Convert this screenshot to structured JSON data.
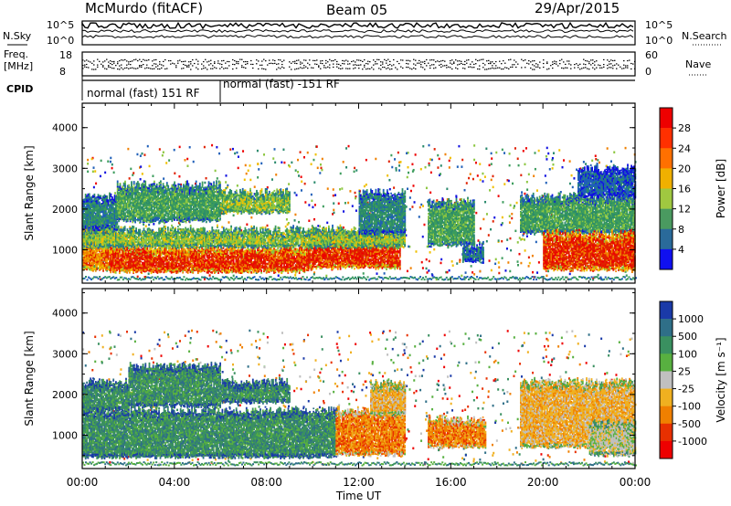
{
  "header": {
    "station": "McMurdo (fitACF)",
    "beam": "Beam 05",
    "date": "29/Apr/2015"
  },
  "top_panels": {
    "nsky_label": "N.Sky",
    "nsky_ticks": [
      "10^5",
      "10^0"
    ],
    "nsearch_ticks": [
      "10^5",
      "10^0"
    ],
    "nsearch_label": "N.Search",
    "freq_label_1": "Freq.",
    "freq_label_2": "[MHz]",
    "freq_ticks": [
      "18",
      "8"
    ],
    "nave_ticks": [
      "60",
      "0"
    ],
    "nave_label": "Nave",
    "cpid_label": "CPID",
    "cpid_segments": [
      {
        "text": "normal (fast) 151 RF",
        "start_hour": 0,
        "end_hour": 6.2
      },
      {
        "text": "normal (fast) -151 RF",
        "start_hour": 6.2,
        "end_hour": 24
      }
    ]
  },
  "chart_data": [
    {
      "type": "heatmap",
      "name": "power-panel",
      "ylabel": "Slant Range [km]",
      "xlim": [
        0,
        24
      ],
      "ylim": [
        180,
        4600
      ],
      "yticks": [
        "1000",
        "2000",
        "3000",
        "4000"
      ],
      "colorbar_label": "Power [dB]",
      "colorbar_ticks": [
        "28",
        "24",
        "20",
        "16",
        "12",
        "8",
        "4"
      ],
      "colors": [
        "#1010e0",
        "#1f5fb8",
        "#2a8a6c",
        "#3c9c5c",
        "#8cc640",
        "#f0c000",
        "#f08000",
        "#e02000",
        "#ee0000"
      ],
      "colorbar_colors": [
        "#ee0000",
        "#ff3000",
        "#ff7000",
        "#f0b000",
        "#a0c840",
        "#4a9a60",
        "#2a6a9a",
        "#1010f0"
      ],
      "regions": [
        {
          "x0": 0,
          "x1": 1.2,
          "r0": 500,
          "r1": 1600,
          "lvl": 6
        },
        {
          "x0": 1.2,
          "x1": 9.8,
          "r0": 450,
          "r1": 1050,
          "lvl": 7
        },
        {
          "x0": 9.8,
          "x1": 13.8,
          "r0": 550,
          "r1": 1350,
          "lvl": 7
        },
        {
          "x0": 0,
          "x1": 14,
          "r0": 1050,
          "r1": 1500,
          "lvl": 4
        },
        {
          "x0": 0,
          "x1": 1.5,
          "r0": 1500,
          "r1": 2300,
          "lvl": 2
        },
        {
          "x0": 1.5,
          "x1": 6,
          "r0": 1700,
          "r1": 2600,
          "lvl": 3
        },
        {
          "x0": 6,
          "x1": 9,
          "r0": 1900,
          "r1": 2400,
          "lvl": 4
        },
        {
          "x0": 12,
          "x1": 14,
          "r0": 1400,
          "r1": 2400,
          "lvl": 2
        },
        {
          "x0": 15,
          "x1": 17,
          "r0": 1100,
          "r1": 2200,
          "lvl": 3
        },
        {
          "x0": 16.5,
          "x1": 17.4,
          "r0": 700,
          "r1": 1100,
          "lvl": 2
        },
        {
          "x0": 19,
          "x1": 24,
          "r0": 1400,
          "r1": 2300,
          "lvl": 3
        },
        {
          "x0": 20,
          "x1": 24,
          "r0": 500,
          "r1": 1400,
          "lvl": 7
        },
        {
          "x0": 21.5,
          "x1": 24,
          "r0": 2300,
          "r1": 3000,
          "lvl": 1
        }
      ]
    },
    {
      "type": "heatmap",
      "name": "velocity-panel",
      "ylabel": "Slant Range [km]",
      "xlabel": "Time UT",
      "xlim": [
        0,
        24
      ],
      "ylim": [
        180,
        4600
      ],
      "yticks": [
        "1000",
        "2000",
        "3000",
        "4000"
      ],
      "xticks": [
        "00:00",
        "04:00",
        "08:00",
        "12:00",
        "16:00",
        "20:00",
        "00:00"
      ],
      "colorbar_label": "Velocity [m s⁻¹]",
      "colorbar_ticks": [
        "1000",
        "500",
        "100",
        "25",
        "-25",
        "-100",
        "-500",
        "-1000"
      ],
      "colors": [
        "#1a3aa8",
        "#2f6f88",
        "#3a9060",
        "#58b040",
        "#c0c0c0",
        "#f0b020",
        "#f08000",
        "#e83000",
        "#ee0000"
      ],
      "colorbar_colors": [
        "#1a3aa8",
        "#2f6f88",
        "#3a9060",
        "#58b040",
        "#c0c0c0",
        "#f0b020",
        "#f08000",
        "#e83000",
        "#ee0000"
      ],
      "regions": [
        {
          "x0": 0,
          "x1": 11.0,
          "r0": 450,
          "r1": 1600,
          "lvl": 2
        },
        {
          "x0": 0,
          "x1": 2,
          "r0": 1600,
          "r1": 2300,
          "lvl": 2
        },
        {
          "x0": 2,
          "x1": 6,
          "r0": 1700,
          "r1": 2700,
          "lvl": 2
        },
        {
          "x0": 6,
          "x1": 9,
          "r0": 1800,
          "r1": 2300,
          "lvl": 2
        },
        {
          "x0": 11.0,
          "x1": 14,
          "r0": 500,
          "r1": 1600,
          "lvl": 6
        },
        {
          "x0": 12.5,
          "x1": 14,
          "r0": 1500,
          "r1": 2300,
          "lvl": 5
        },
        {
          "x0": 15,
          "x1": 17.5,
          "r0": 700,
          "r1": 1400,
          "lvl": 6
        },
        {
          "x0": 19,
          "x1": 24,
          "r0": 700,
          "r1": 2300,
          "lvl": 5
        },
        {
          "x0": 22,
          "x1": 24,
          "r0": 500,
          "r1": 1300,
          "lvl": 4
        }
      ]
    }
  ]
}
